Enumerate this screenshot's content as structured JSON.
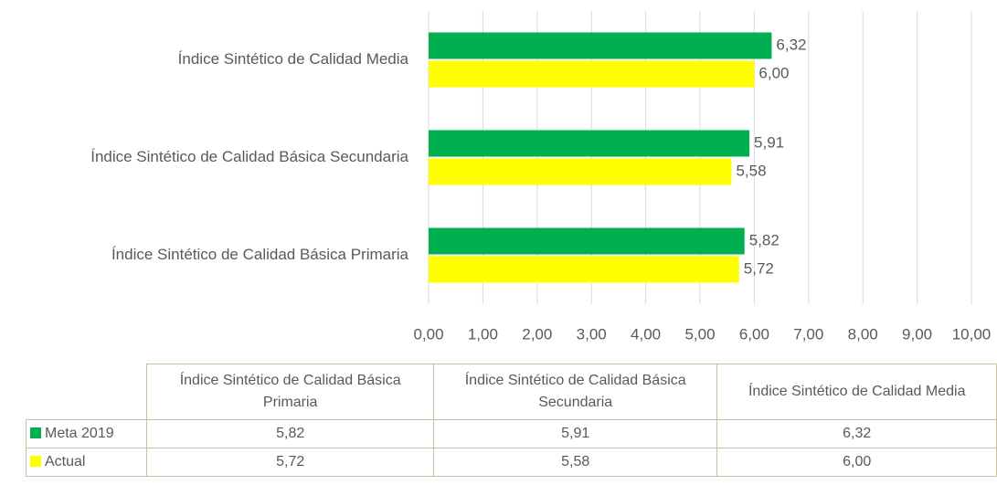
{
  "chart_data": {
    "type": "bar",
    "orientation": "horizontal",
    "categories": [
      "Índice Sintético de Calidad Básica Primaria",
      "Índice Sintético de Calidad Básica Secundaria",
      "Índice Sintético de Calidad Media"
    ],
    "series": [
      {
        "name": "Meta 2019",
        "color": "#00b050",
        "values": [
          5.82,
          5.91,
          6.32
        ],
        "value_labels": [
          "5,82",
          "5,91",
          "6,32"
        ]
      },
      {
        "name": "Actual",
        "color": "#ffff00",
        "values": [
          5.72,
          5.58,
          6.0
        ],
        "value_labels": [
          "5,72",
          "5,58",
          "6,00"
        ]
      }
    ],
    "xlim": [
      0,
      10
    ],
    "xticks": [
      {
        "value": 0,
        "label": "0,00"
      },
      {
        "value": 1,
        "label": "1,00"
      },
      {
        "value": 2,
        "label": "2,00"
      },
      {
        "value": 3,
        "label": "3,00"
      },
      {
        "value": 4,
        "label": "4,00"
      },
      {
        "value": 5,
        "label": "5,00"
      },
      {
        "value": 6,
        "label": "6,00"
      },
      {
        "value": 7,
        "label": "7,00"
      },
      {
        "value": 8,
        "label": "8,00"
      },
      {
        "value": 9,
        "label": "9,00"
      },
      {
        "value": 10,
        "label": "10,00"
      }
    ],
    "grid": true,
    "data_table": true
  }
}
